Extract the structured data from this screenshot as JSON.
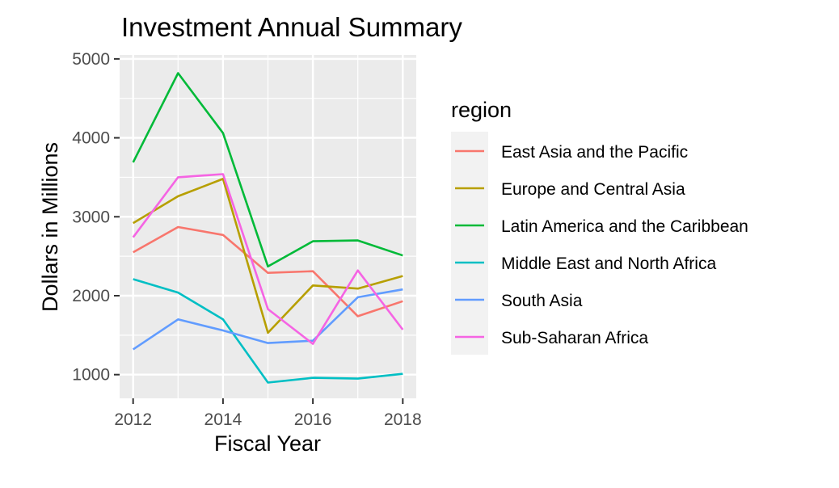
{
  "chart_data": {
    "type": "line",
    "title": "Investment Annual Summary",
    "xlabel": "Fiscal Year",
    "ylabel": "Dollars in Millions",
    "x": [
      2012,
      2013,
      2014,
      2015,
      2016,
      2017,
      2018
    ],
    "x_ticks": [
      2012,
      2014,
      2016,
      2018
    ],
    "y_ticks": [
      1000,
      2000,
      3000,
      4000,
      5000
    ],
    "xlim": [
      2011.7,
      2018.3
    ],
    "ylim": [
      700,
      5050
    ],
    "grid": true,
    "legend_title": "region",
    "legend_position": "right",
    "series": [
      {
        "name": "East Asia and the Pacific",
        "color": "#F8766D",
        "values": [
          2550,
          2870,
          2770,
          2290,
          2310,
          1740,
          1930
        ]
      },
      {
        "name": "Europe and Central Asia",
        "color": "#B79F00",
        "values": [
          2920,
          3260,
          3480,
          1530,
          2130,
          2090,
          2250
        ]
      },
      {
        "name": "Latin America and the Caribbean",
        "color": "#00BA38",
        "values": [
          3690,
          4820,
          4060,
          2370,
          2690,
          2700,
          2510
        ]
      },
      {
        "name": "Middle East and North Africa",
        "color": "#00BFC4",
        "values": [
          2210,
          2040,
          1700,
          900,
          960,
          950,
          1010
        ]
      },
      {
        "name": "South Asia",
        "color": "#619CFF",
        "values": [
          1320,
          1700,
          1560,
          1400,
          1430,
          1980,
          2080
        ]
      },
      {
        "name": "Sub-Saharan Africa",
        "color": "#F564E3",
        "values": [
          2740,
          3500,
          3540,
          1830,
          1390,
          2320,
          1570
        ]
      }
    ]
  }
}
